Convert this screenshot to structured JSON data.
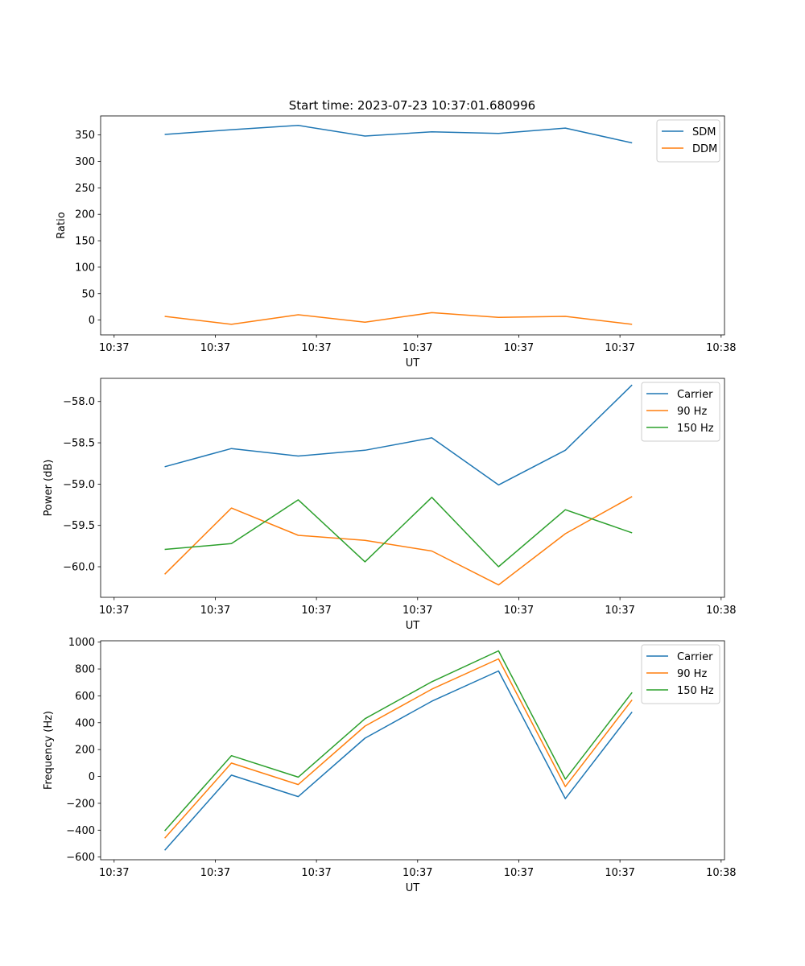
{
  "figure_title": "Start time: 2023-07-23 10:37:01.680996",
  "chart_data": [
    {
      "type": "line",
      "title": "Start time: 2023-07-23 10:37:01.680996",
      "xlabel": "UT",
      "ylabel": "Ratio",
      "x_tick_labels": [
        "10:37",
        "10:37",
        "10:37",
        "10:37",
        "10:37",
        "10:37",
        "10:38"
      ],
      "x_tick_positions": [
        0,
        1.5,
        3,
        4.5,
        6,
        7.5,
        9
      ],
      "x": [
        0.75,
        1.74,
        2.73,
        3.72,
        4.71,
        5.7,
        6.69,
        7.68
      ],
      "xlim": [
        -0.2,
        9.05
      ],
      "ylim": [
        -28,
        386
      ],
      "y_ticks": [
        0,
        50,
        100,
        150,
        200,
        250,
        300,
        350
      ],
      "y_tick_labels": [
        "0",
        "50",
        "100",
        "150",
        "200",
        "250",
        "300",
        "350"
      ],
      "legend_position": "top-right",
      "series": [
        {
          "name": "SDM",
          "color": "#1f77b4",
          "values": [
            351,
            360,
            368,
            348,
            356,
            353,
            363,
            335
          ]
        },
        {
          "name": "DDM",
          "color": "#ff7f0e",
          "values": [
            7,
            -8,
            10,
            -4,
            14,
            5,
            7,
            -8
          ]
        }
      ]
    },
    {
      "type": "line",
      "xlabel": "UT",
      "ylabel": "Power (dB)",
      "x_tick_labels": [
        "10:37",
        "10:37",
        "10:37",
        "10:37",
        "10:37",
        "10:37",
        "10:38"
      ],
      "x_tick_positions": [
        0,
        1.5,
        3,
        4.5,
        6,
        7.5,
        9
      ],
      "x": [
        0.75,
        1.74,
        2.73,
        3.72,
        4.71,
        5.7,
        6.69,
        7.68
      ],
      "xlim": [
        -0.2,
        9.05
      ],
      "ylim": [
        -60.37,
        -57.72
      ],
      "y_ticks": [
        -60.0,
        -59.5,
        -59.0,
        -58.5,
        -58.0
      ],
      "y_tick_labels": [
        "−60.0",
        "−59.5",
        "−59.0",
        "−58.5",
        "−58.0"
      ],
      "legend_position": "top-right",
      "series": [
        {
          "name": "Carrier",
          "color": "#1f77b4",
          "values": [
            -58.79,
            -58.57,
            -58.66,
            -58.59,
            -58.44,
            -59.01,
            -58.59,
            -57.8
          ]
        },
        {
          "name": "90 Hz",
          "color": "#ff7f0e",
          "values": [
            -60.09,
            -59.29,
            -59.62,
            -59.68,
            -59.81,
            -60.22,
            -59.6,
            -59.15
          ]
        },
        {
          "name": "150 Hz",
          "color": "#2ca02c",
          "values": [
            -59.79,
            -59.72,
            -59.19,
            -59.94,
            -59.16,
            -60.0,
            -59.31,
            -59.59
          ]
        }
      ]
    },
    {
      "type": "line",
      "xlabel": "UT",
      "ylabel": "Frequency (Hz)",
      "x_tick_labels": [
        "10:37",
        "10:37",
        "10:37",
        "10:37",
        "10:37",
        "10:37",
        "10:38"
      ],
      "x_tick_positions": [
        0,
        1.5,
        3,
        4.5,
        6,
        7.5,
        9
      ],
      "x": [
        0.75,
        1.74,
        2.73,
        3.72,
        4.71,
        5.7,
        6.69,
        7.68
      ],
      "xlim": [
        -0.2,
        9.05
      ],
      "ylim": [
        -620,
        1010
      ],
      "y_ticks": [
        -600,
        -400,
        -200,
        0,
        200,
        400,
        600,
        800,
        1000
      ],
      "y_tick_labels": [
        "−600",
        "−400",
        "−200",
        "0",
        "200",
        "400",
        "600",
        "800",
        "1000"
      ],
      "legend_position": "top-right",
      "series": [
        {
          "name": "Carrier",
          "color": "#1f77b4",
          "values": [
            -550,
            10,
            -150,
            285,
            560,
            785,
            -165,
            480
          ]
        },
        {
          "name": "90 Hz",
          "color": "#ff7f0e",
          "values": [
            -460,
            100,
            -60,
            375,
            650,
            875,
            -75,
            570
          ]
        },
        {
          "name": "150 Hz",
          "color": "#2ca02c",
          "values": [
            -405,
            155,
            -5,
            430,
            705,
            935,
            -20,
            625
          ]
        }
      ]
    }
  ]
}
